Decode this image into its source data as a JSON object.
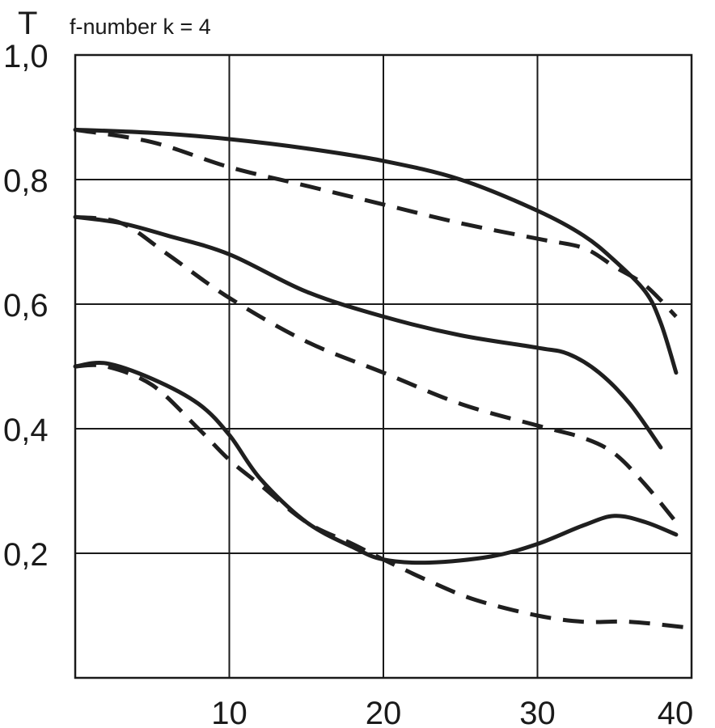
{
  "chart_data": {
    "type": "line",
    "title": "f-number k = 4",
    "ylabel": "T",
    "xlabel": "",
    "xlim": [
      0,
      40
    ],
    "ylim": [
      0,
      1.0
    ],
    "grid": true,
    "xticks": [
      {
        "value": 10,
        "label": "10"
      },
      {
        "value": 20,
        "label": "20"
      },
      {
        "value": 30,
        "label": "30"
      },
      {
        "value": 40,
        "label": "40"
      }
    ],
    "yticks": [
      {
        "value": 0.2,
        "label": "0,2"
      },
      {
        "value": 0.4,
        "label": "0,4"
      },
      {
        "value": 0.6,
        "label": "0,6"
      },
      {
        "value": 0.8,
        "label": "0,8"
      },
      {
        "value": 1.0,
        "label": "1,0"
      }
    ],
    "series": [
      {
        "style": "solid",
        "x": [
          0,
          5,
          10,
          15,
          20,
          25,
          30,
          33,
          35,
          37,
          38,
          39
        ],
        "y": [
          0.88,
          0.875,
          0.865,
          0.85,
          0.83,
          0.8,
          0.75,
          0.71,
          0.67,
          0.62,
          0.57,
          0.49
        ]
      },
      {
        "style": "dashed",
        "x": [
          0,
          5,
          10,
          15,
          20,
          25,
          30,
          33,
          35,
          37,
          39
        ],
        "y": [
          0.88,
          0.86,
          0.82,
          0.79,
          0.76,
          0.73,
          0.705,
          0.69,
          0.66,
          0.63,
          0.58
        ]
      },
      {
        "style": "solid",
        "x": [
          0,
          3,
          6,
          10,
          15,
          20,
          25,
          30,
          32,
          34,
          36,
          38
        ],
        "y": [
          0.74,
          0.73,
          0.71,
          0.68,
          0.62,
          0.58,
          0.55,
          0.53,
          0.52,
          0.49,
          0.44,
          0.37
        ]
      },
      {
        "style": "dashed",
        "x": [
          0,
          3,
          6,
          10,
          15,
          20,
          25,
          30,
          33,
          35,
          37,
          39
        ],
        "y": [
          0.74,
          0.73,
          0.68,
          0.61,
          0.54,
          0.49,
          0.44,
          0.405,
          0.385,
          0.36,
          0.31,
          0.25
        ]
      },
      {
        "style": "solid",
        "x": [
          0,
          2,
          5,
          8,
          10,
          12,
          15,
          18,
          20,
          23,
          27,
          30,
          33,
          35,
          37,
          39
        ],
        "y": [
          0.5,
          0.505,
          0.48,
          0.44,
          0.39,
          0.32,
          0.25,
          0.21,
          0.19,
          0.185,
          0.195,
          0.215,
          0.245,
          0.26,
          0.25,
          0.23
        ]
      },
      {
        "style": "dashed",
        "x": [
          0,
          2,
          5,
          8,
          10,
          12,
          15,
          18,
          20,
          23,
          26,
          30,
          33,
          36,
          40
        ],
        "y": [
          0.5,
          0.5,
          0.47,
          0.4,
          0.35,
          0.31,
          0.25,
          0.215,
          0.19,
          0.155,
          0.125,
          0.1,
          0.09,
          0.09,
          0.08
        ]
      }
    ]
  }
}
